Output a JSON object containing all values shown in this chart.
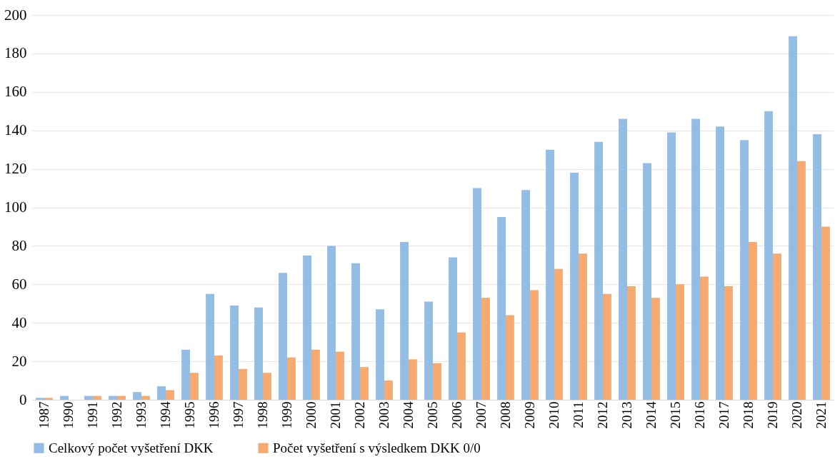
{
  "chart_data": {
    "type": "bar",
    "categories": [
      "1987",
      "1990",
      "1991",
      "1992",
      "1993",
      "1994",
      "1995",
      "1996",
      "1997",
      "1998",
      "1999",
      "2000",
      "2001",
      "2002",
      "2003",
      "2004",
      "2005",
      "2006",
      "2007",
      "2008",
      "2009",
      "2010",
      "2011",
      "2012",
      "2013",
      "2014",
      "2015",
      "2016",
      "2017",
      "2018",
      "2019",
      "2020",
      "2021"
    ],
    "series": [
      {
        "name": "Celkový počet vyšetření DKK",
        "color": "#8db9e3",
        "values": [
          1,
          2,
          2,
          2,
          4,
          7,
          26,
          55,
          49,
          48,
          66,
          75,
          80,
          71,
          47,
          82,
          51,
          74,
          110,
          95,
          109,
          130,
          118,
          134,
          146,
          123,
          139,
          146,
          142,
          135,
          150,
          189,
          138
        ]
      },
      {
        "name": "Počet vyšetření s výsledkem DKK 0/0",
        "color": "#f4a56a",
        "values": [
          1,
          0,
          2,
          2,
          2,
          5,
          14,
          23,
          16,
          14,
          22,
          26,
          25,
          17,
          10,
          21,
          19,
          35,
          53,
          44,
          57,
          68,
          76,
          55,
          59,
          53,
          60,
          64,
          59,
          82,
          76,
          124,
          90
        ]
      }
    ],
    "ylim": [
      0,
      200
    ],
    "yticks": [
      0,
      20,
      40,
      60,
      80,
      100,
      120,
      140,
      160,
      180,
      200
    ],
    "grid": "y",
    "legend": "bottom"
  }
}
